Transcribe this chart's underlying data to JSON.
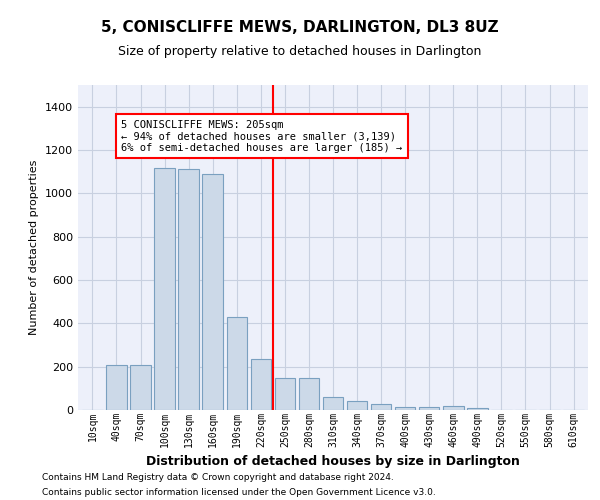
{
  "title": "5, CONISCLIFFE MEWS, DARLINGTON, DL3 8UZ",
  "subtitle": "Size of property relative to detached houses in Darlington",
  "xlabel": "Distribution of detached houses by size in Darlington",
  "ylabel": "Number of detached properties",
  "bar_color": "#ccd9e8",
  "bar_edge_color": "#7aa0c0",
  "categories": [
    "10sqm",
    "40sqm",
    "70sqm",
    "100sqm",
    "130sqm",
    "160sqm",
    "190sqm",
    "220sqm",
    "250sqm",
    "280sqm",
    "310sqm",
    "340sqm",
    "370sqm",
    "400sqm",
    "430sqm",
    "460sqm",
    "490sqm",
    "520sqm",
    "550sqm",
    "580sqm",
    "610sqm"
  ],
  "values": [
    0,
    210,
    210,
    1115,
    1110,
    1090,
    430,
    235,
    150,
    150,
    60,
    40,
    27,
    15,
    15,
    20,
    10,
    0,
    0,
    0,
    0
  ],
  "ylim": [
    0,
    1500
  ],
  "yticks": [
    0,
    200,
    400,
    600,
    800,
    1000,
    1200,
    1400
  ],
  "red_line_x": 7.5,
  "annotation_text": "5 CONISCLIFFE MEWS: 205sqm\n← 94% of detached houses are smaller (3,139)\n6% of semi-detached houses are larger (185) →",
  "footer1": "Contains HM Land Registry data © Crown copyright and database right 2024.",
  "footer2": "Contains public sector information licensed under the Open Government Licence v3.0.",
  "background_color": "#edf0fa",
  "grid_color": "#c8d0e0"
}
